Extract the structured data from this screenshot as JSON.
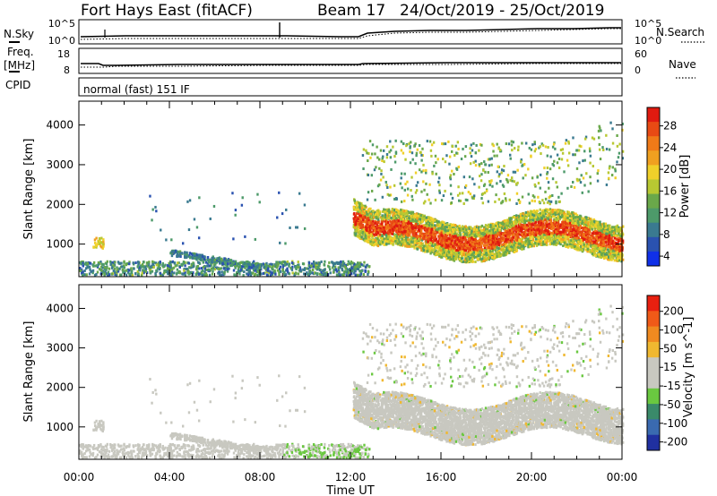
{
  "header": {
    "station": "Fort Hays East (fitACF)",
    "beam": "Beam 17",
    "date_range": "24/Oct/2019 - 25/Oct/2019"
  },
  "status_panels": {
    "nsky_label": "N.Sky",
    "nsearch_label": "N.Search",
    "nsky_ticks": [
      "10^5",
      "10^0"
    ],
    "nsearch_ticks": [
      "10^5",
      "10^0"
    ],
    "freq_label_line1": "Freq.",
    "freq_label_line2": "[MHz]",
    "freq_ticks": [
      "18",
      "8"
    ],
    "nave_label": "Nave",
    "nave_ticks": [
      "60",
      "0"
    ],
    "cpid_label": "CPID",
    "mode_text": "normal (fast) 151 IF"
  },
  "chart_data": [
    {
      "type": "heatmap",
      "title": "",
      "xlabel": "",
      "ylabel": "Slant Range [km]",
      "xlim": [
        0,
        24
      ],
      "ylim": [
        180,
        4600
      ],
      "yticks": [
        1000,
        2000,
        3000,
        4000
      ],
      "grid": false,
      "colorbar": {
        "label": "Power [dB]",
        "ticks": [
          "28",
          "24",
          "20",
          "16",
          "12",
          "8",
          "4"
        ],
        "range": [
          0,
          30
        ],
        "colors": [
          "#1030e8",
          "#2a52b0",
          "#3a7a90",
          "#4d9a6a",
          "#6aa84a",
          "#b8c832",
          "#f0d02a",
          "#f0a020",
          "#f07a18",
          "#e84a14",
          "#e01a10"
        ]
      }
    },
    {
      "type": "heatmap",
      "title": "",
      "xlabel": "Time UT",
      "ylabel": "Slant Range [km]",
      "xlim": [
        0,
        24
      ],
      "ylim": [
        180,
        4600
      ],
      "yticks": [
        1000,
        2000,
        3000,
        4000
      ],
      "xtick_labels": [
        "00:00",
        "04:00",
        "08:00",
        "12:00",
        "16:00",
        "20:00",
        "00:00"
      ],
      "grid": false,
      "colorbar": {
        "label": "Velocity [m s^-1]",
        "ticks": [
          "200",
          "100",
          "50",
          "15",
          "-15",
          "-50",
          "-100",
          "-200"
        ],
        "range": [
          -250,
          250
        ],
        "colors": [
          "#2030a0",
          "#3a6ab0",
          "#3a8a6a",
          "#6ac840",
          "#c8c8c0",
          "#c8c8c0",
          "#f0b830",
          "#f08a20",
          "#f05a18",
          "#e82010"
        ]
      }
    }
  ]
}
